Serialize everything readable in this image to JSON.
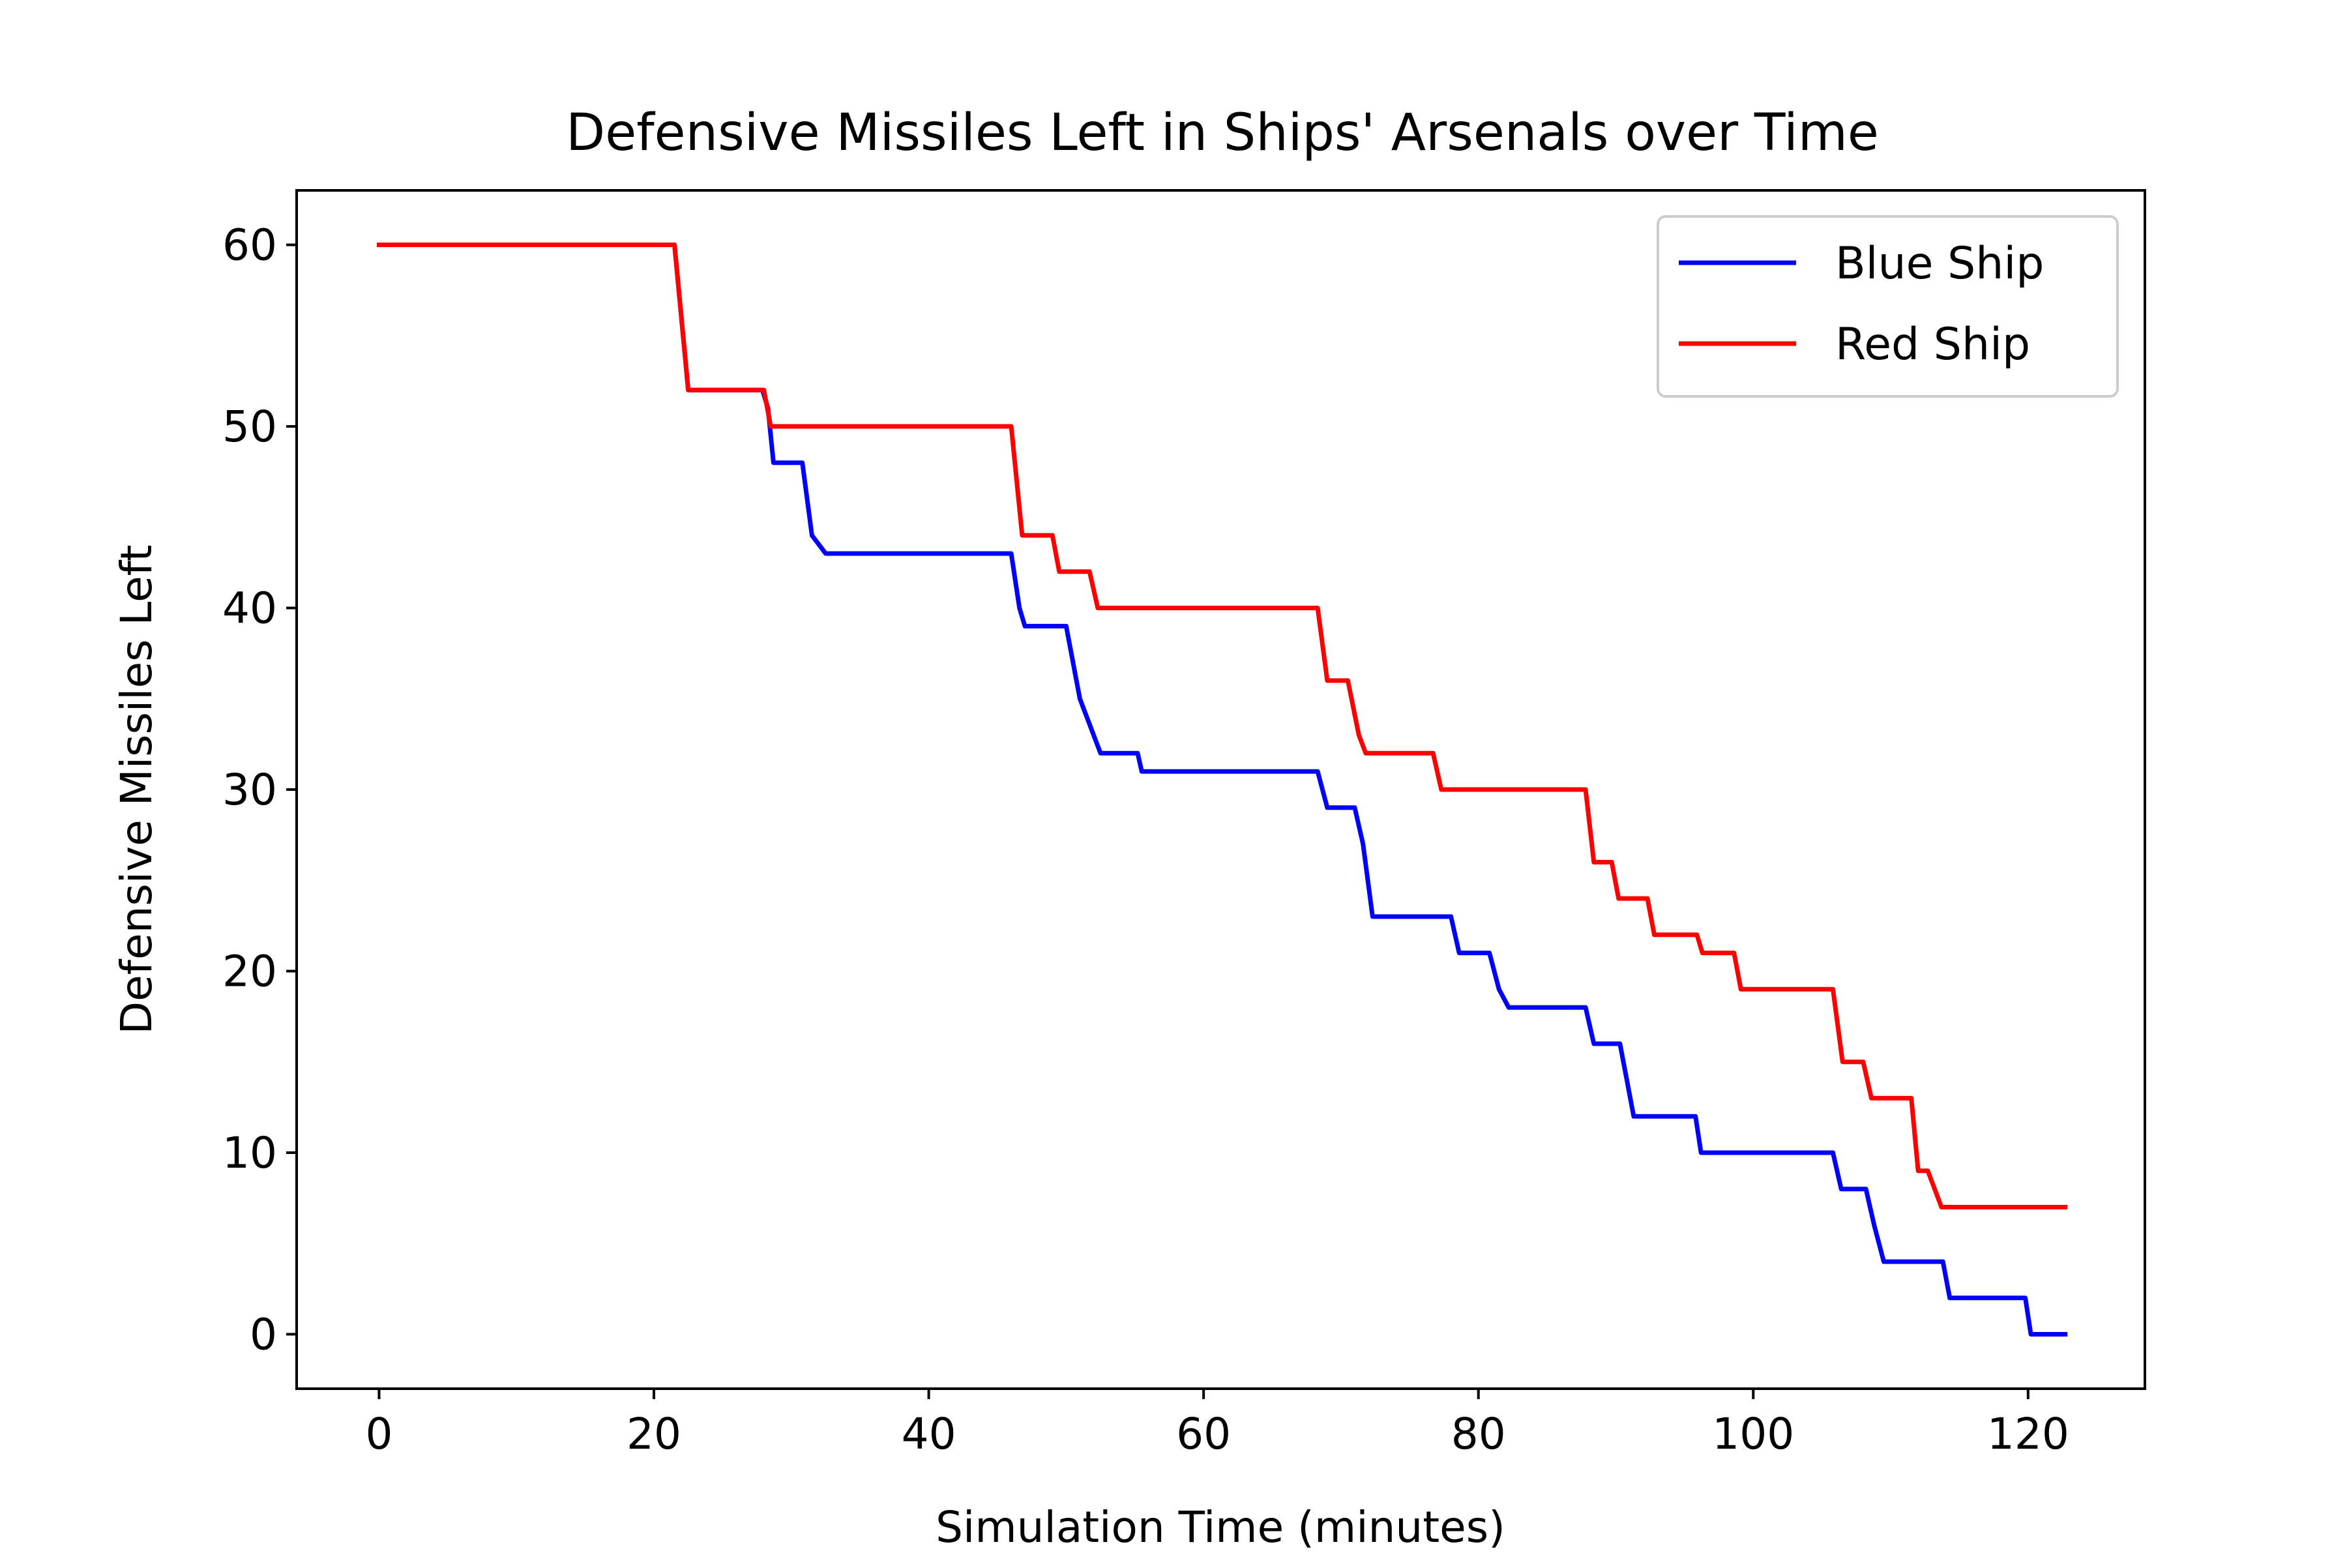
{
  "chart_data": {
    "type": "line",
    "title": "Defensive Missiles Left in Ships' Arsenals over Time",
    "xlabel": "Simulation Time (minutes)",
    "ylabel": "Defensive Missiles Left",
    "xlim": [
      -6,
      128.5
    ],
    "ylim": [
      -3,
      63
    ],
    "xticks": [
      0,
      20,
      40,
      60,
      80,
      100,
      120
    ],
    "yticks": [
      0,
      10,
      20,
      30,
      40,
      50,
      60
    ],
    "grid": false,
    "legend_position": "top-right",
    "series": [
      {
        "name": "Blue Ship",
        "color": "#0000ff",
        "x": [
          0,
          21.5,
          22.5,
          27.9,
          28.3,
          28.7,
          30.8,
          31.5,
          32.5,
          46.0,
          46.6,
          47.0,
          50.0,
          51.0,
          52.5,
          55.2,
          55.5,
          68.3,
          69.0,
          71.0,
          71.6,
          72.3,
          78.0,
          78.6,
          80.8,
          81.5,
          82.2,
          87.8,
          88.4,
          90.3,
          90.8,
          91.3,
          95.8,
          96.2,
          105.8,
          106.4,
          108.2,
          108.8,
          109.5,
          113.8,
          114.3,
          119.8,
          120.2,
          122.7
        ],
        "y": [
          60,
          60,
          52,
          52,
          51,
          48,
          48,
          44,
          43,
          43,
          40,
          39,
          39,
          35,
          32,
          32,
          31,
          31,
          29,
          29,
          27,
          23,
          23,
          21,
          21,
          19,
          18,
          18,
          16,
          16,
          14,
          12,
          12,
          10,
          10,
          8,
          8,
          6,
          4,
          4,
          2,
          2,
          0,
          0
        ]
      },
      {
        "name": "Red Ship",
        "color": "#ff0000",
        "x": [
          0,
          21.5,
          22.5,
          28.0,
          28.5,
          46.0,
          46.8,
          47.5,
          49.0,
          49.5,
          51.7,
          52.3,
          68.3,
          69.0,
          70.5,
          71.3,
          71.8,
          76.7,
          77.3,
          87.8,
          88.4,
          89.7,
          90.2,
          92.3,
          92.8,
          95.9,
          96.3,
          98.6,
          99.1,
          105.8,
          106.5,
          108.0,
          108.6,
          111.5,
          112.0,
          112.7,
          113.7,
          122.7
        ],
        "y": [
          60,
          60,
          52,
          52,
          50,
          50,
          44,
          44,
          44,
          42,
          42,
          40,
          40,
          36,
          36,
          33,
          32,
          32,
          30,
          30,
          26,
          26,
          24,
          24,
          22,
          22,
          21,
          21,
          19,
          19,
          15,
          15,
          13,
          13,
          9,
          9,
          7,
          7
        ]
      }
    ]
  }
}
